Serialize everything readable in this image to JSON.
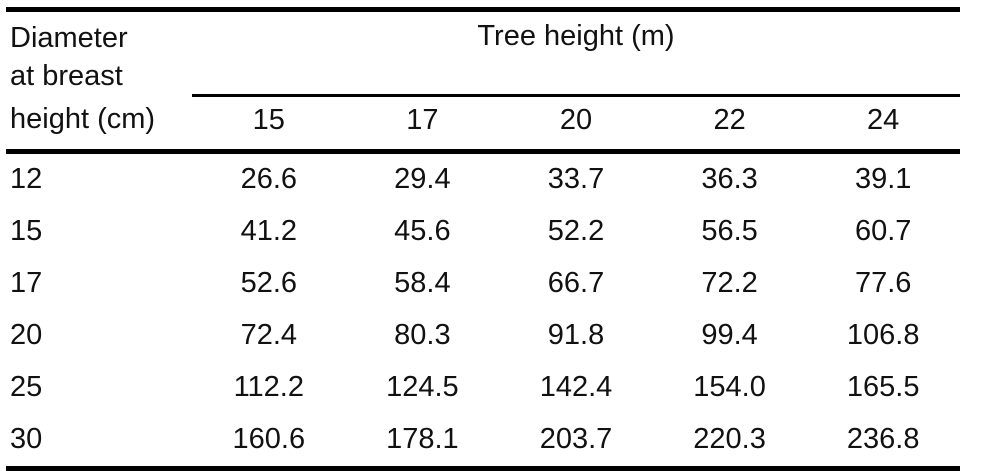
{
  "table": {
    "row_header": {
      "line1": "Diameter",
      "line2": "at breast",
      "line3": "height (cm)"
    },
    "group_header": "Tree height (m)",
    "col_headers": [
      "15",
      "17",
      "20",
      "22",
      "24"
    ],
    "rows": [
      {
        "dbh": "12",
        "values": [
          "26.6",
          "29.4",
          "33.7",
          "36.3",
          "39.1"
        ]
      },
      {
        "dbh": "15",
        "values": [
          "41.2",
          "45.6",
          "52.2",
          "56.5",
          "60.7"
        ]
      },
      {
        "dbh": "17",
        "values": [
          "52.6",
          "58.4",
          "66.7",
          "72.2",
          "77.6"
        ]
      },
      {
        "dbh": "20",
        "values": [
          "72.4",
          "80.3",
          "91.8",
          "99.4",
          "106.8"
        ]
      },
      {
        "dbh": "25",
        "values": [
          "112.2",
          "124.5",
          "142.4",
          "154.0",
          "165.5"
        ]
      },
      {
        "dbh": "30",
        "values": [
          "160.6",
          "178.1",
          "203.7",
          "220.3",
          "236.8"
        ]
      }
    ]
  },
  "chart_data": {
    "type": "table",
    "title": "",
    "row_variable": "Diameter at breast height (cm)",
    "column_variable": "Tree height (m)",
    "columns": [
      15,
      17,
      20,
      22,
      24
    ],
    "rows": [
      12,
      15,
      17,
      20,
      25,
      30
    ],
    "values": [
      [
        26.6,
        29.4,
        33.7,
        36.3,
        39.1
      ],
      [
        41.2,
        45.6,
        52.2,
        56.5,
        60.7
      ],
      [
        52.6,
        58.4,
        66.7,
        72.2,
        77.6
      ],
      [
        72.4,
        80.3,
        91.8,
        99.4,
        106.8
      ],
      [
        112.2,
        124.5,
        142.4,
        154.0,
        165.5
      ],
      [
        160.6,
        178.1,
        203.7,
        220.3,
        236.8
      ]
    ]
  }
}
